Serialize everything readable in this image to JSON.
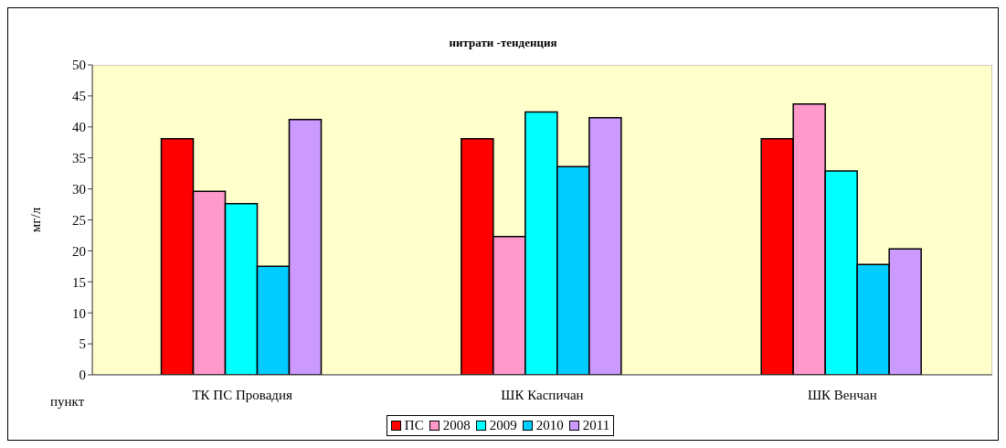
{
  "chart_data": {
    "type": "bar",
    "title": "нитрати -тенденция",
    "xlabel": "пункт",
    "ylabel": "мг/л",
    "categories": [
      "ТК ПС Провадия",
      "ШК Каспичан",
      "ШК Венчан"
    ],
    "series": [
      {
        "name": "ПС",
        "color": "#ff0000",
        "values": [
          38.1,
          38.1,
          38.1
        ]
      },
      {
        "name": "2008",
        "color": "#ff99cc",
        "values": [
          29.6,
          22.3,
          43.7
        ]
      },
      {
        "name": "2009",
        "color": "#00ffff",
        "values": [
          27.6,
          42.4,
          32.9
        ]
      },
      {
        "name": "2010",
        "color": "#00ccff",
        "values": [
          17.5,
          33.6,
          17.8
        ]
      },
      {
        "name": "2011",
        "color": "#cc99ff",
        "values": [
          41.2,
          41.5,
          20.3
        ]
      }
    ],
    "ylim": [
      0,
      50
    ],
    "yticks": [
      0,
      5,
      10,
      15,
      20,
      25,
      30,
      35,
      40,
      45,
      50
    ],
    "grid": false,
    "legend": "bottom"
  }
}
